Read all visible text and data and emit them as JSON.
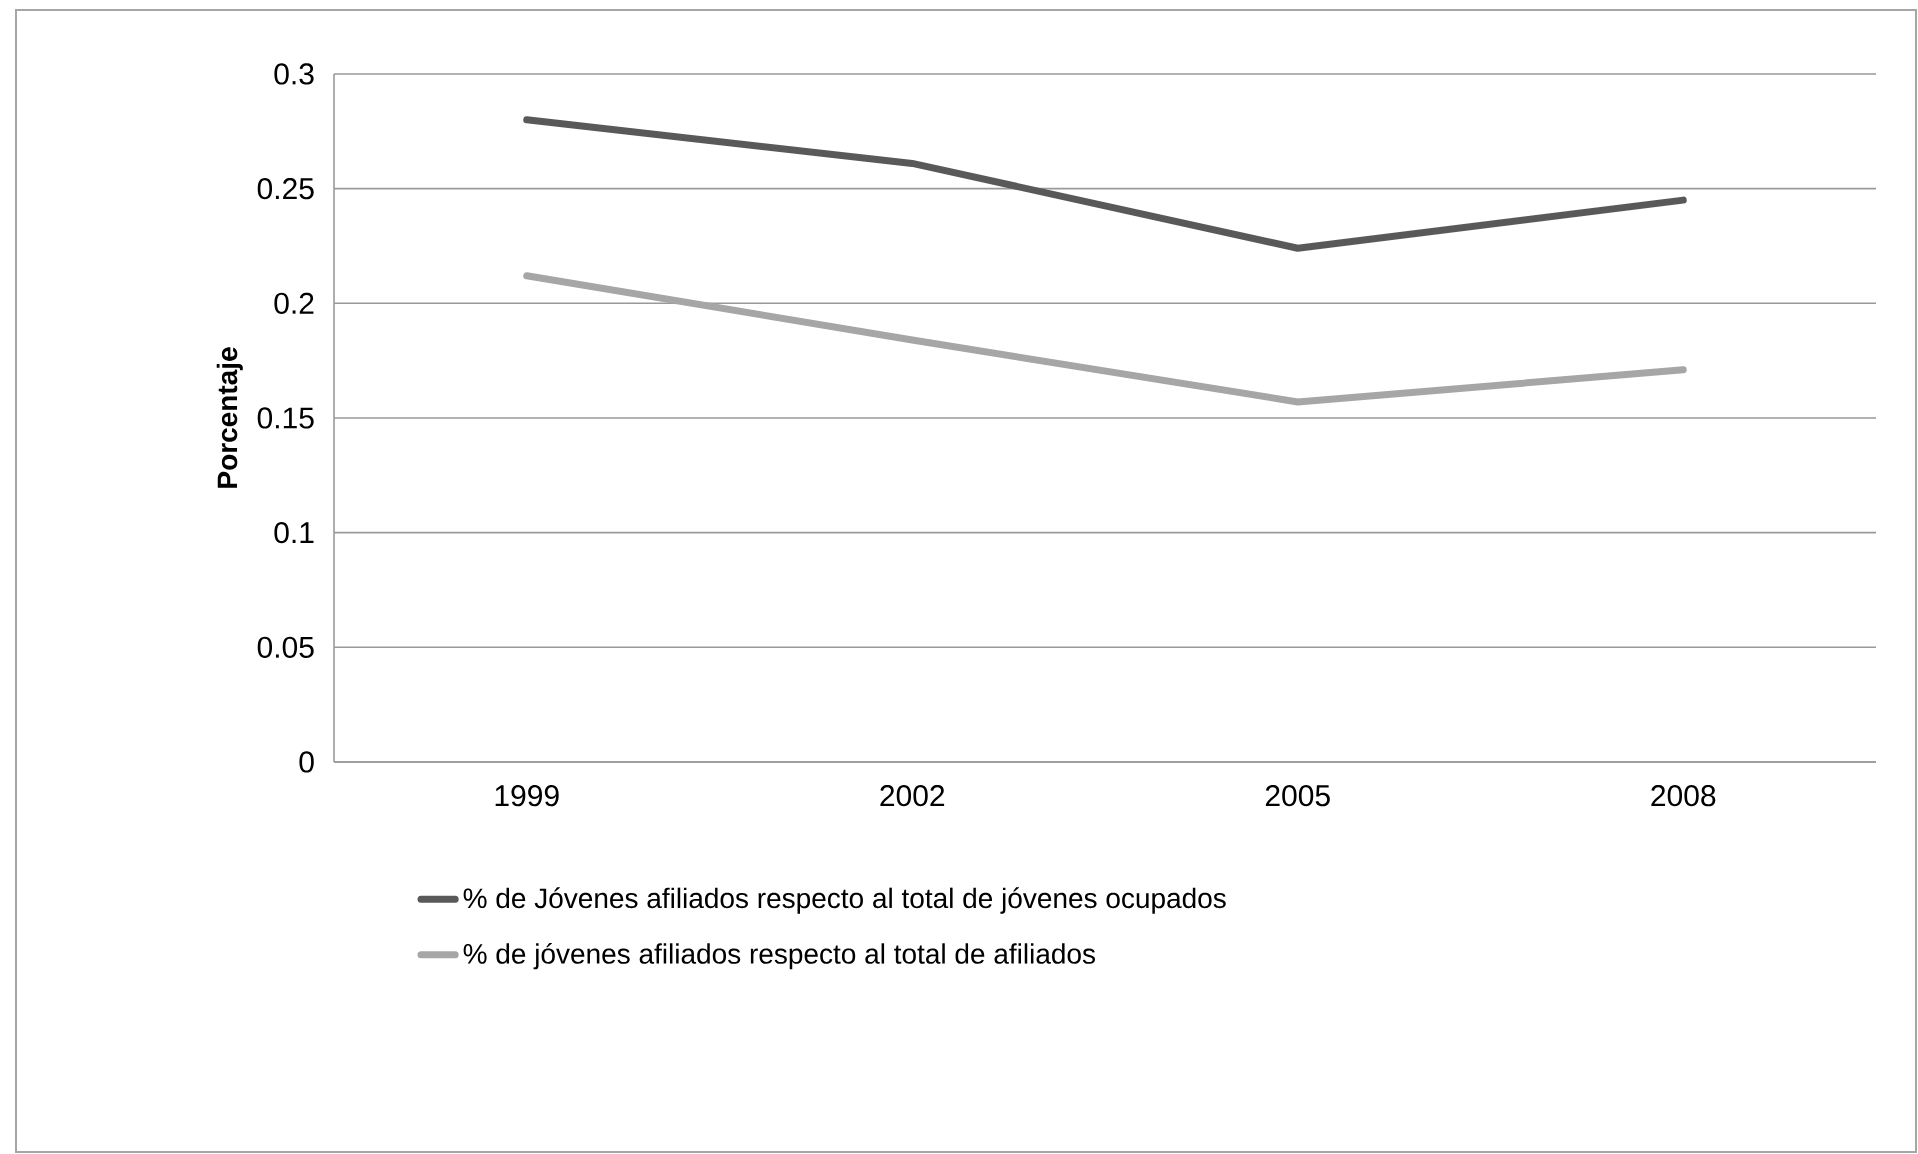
{
  "chart_data": {
    "type": "line",
    "ylabel": "Porcentaje",
    "categories": [
      "1999",
      "2002",
      "2005",
      "2008"
    ],
    "series": [
      {
        "name": "% de Jóvenes afiliados respecto al total de jóvenes ocupados",
        "color": "#595959",
        "values": [
          0.28,
          0.261,
          0.224,
          0.245
        ]
      },
      {
        "name": "% de jóvenes afiliados respecto al total de afiliados",
        "color": "#a6a6a6",
        "values": [
          0.212,
          0.184,
          0.157,
          0.171
        ]
      }
    ],
    "ylim": [
      0,
      0.3
    ],
    "yticks": [
      0,
      0.05,
      0.1,
      0.15,
      0.2,
      0.25,
      0.3
    ],
    "grid": "y",
    "legend": "bottom",
    "marker": "none"
  }
}
